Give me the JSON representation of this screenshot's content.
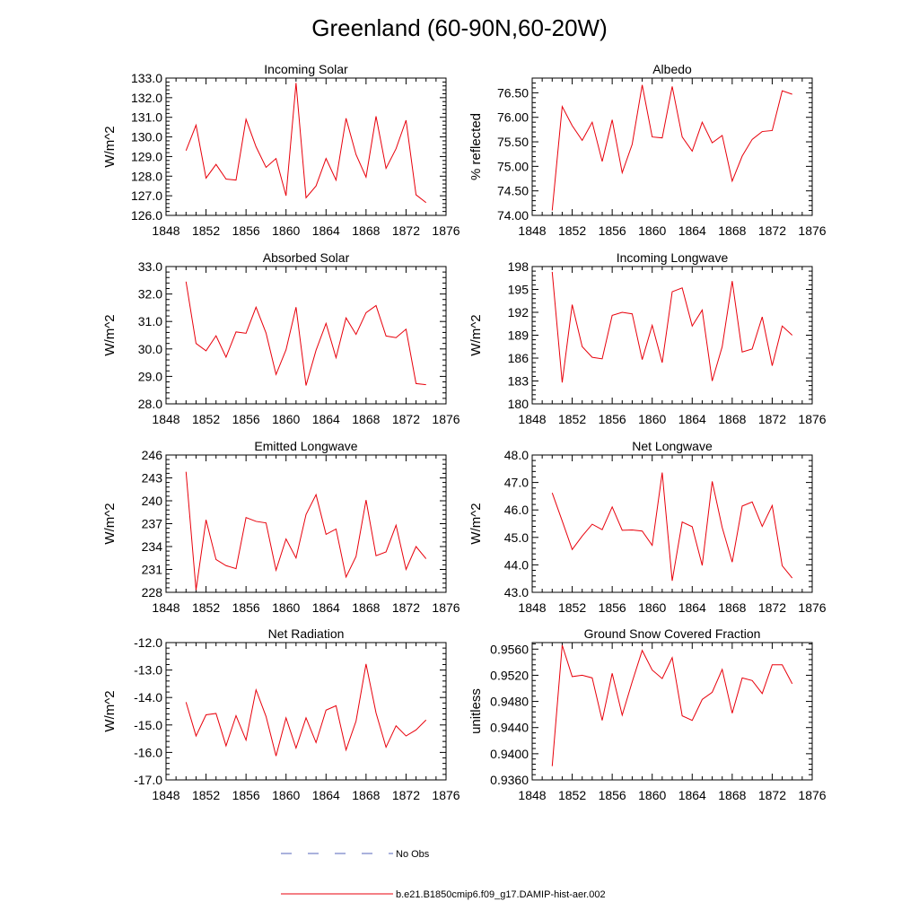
{
  "figure": {
    "title": "Greenland (60-90N,60-20W)"
  },
  "legend": {
    "entries": [
      {
        "label": "No Obs",
        "color": "#5566bb",
        "dash": "dashed"
      },
      {
        "label": "b.e21.B1850cmip6.f09_g17.DAMIP-hist-aer.002",
        "color": "#e8000b",
        "dash": "solid"
      }
    ]
  },
  "colors": {
    "series": "#e8000b",
    "no_obs": "#5566bb"
  },
  "chart_data": [
    {
      "type": "line",
      "title": "Incoming Solar",
      "ylabel": "W/m^2",
      "xlim": [
        1848,
        1876
      ],
      "xticks": [
        "1848",
        "1852",
        "1856",
        "1860",
        "1864",
        "1868",
        "1872",
        "1876"
      ],
      "ylim": [
        126.0,
        133.0
      ],
      "yticks": [
        "126.0",
        "127.0",
        "128.0",
        "129.0",
        "130.0",
        "131.0",
        "132.0",
        "133.0"
      ],
      "x": [
        1850,
        1851,
        1852,
        1853,
        1854,
        1855,
        1856,
        1857,
        1858,
        1859,
        1860,
        1861,
        1862,
        1863,
        1864,
        1865,
        1866,
        1867,
        1868,
        1869,
        1870,
        1871,
        1872,
        1873,
        1874
      ],
      "series": [
        {
          "values": [
            129.3,
            130.6,
            127.9,
            128.6,
            127.85,
            127.8,
            130.9,
            129.5,
            128.45,
            128.9,
            127.0,
            132.75,
            126.9,
            127.5,
            128.9,
            127.8,
            130.95,
            129.1,
            127.95,
            131.05,
            128.4,
            129.4,
            130.85,
            127.05,
            126.65
          ]
        }
      ]
    },
    {
      "type": "line",
      "title": "Albedo",
      "ylabel": "% reflected",
      "xlim": [
        1848,
        1876
      ],
      "xticks": [
        "1848",
        "1852",
        "1856",
        "1860",
        "1864",
        "1868",
        "1872",
        "1876"
      ],
      "ylim": [
        74.0,
        76.8
      ],
      "yticks": [
        "74.00",
        "74.50",
        "75.00",
        "75.50",
        "76.00",
        "76.50"
      ],
      "x": [
        1850,
        1851,
        1852,
        1853,
        1854,
        1855,
        1856,
        1857,
        1858,
        1859,
        1860,
        1861,
        1862,
        1863,
        1864,
        1865,
        1866,
        1867,
        1868,
        1869,
        1870,
        1871,
        1872,
        1873,
        1874
      ],
      "series": [
        {
          "values": [
            74.1,
            76.22,
            75.83,
            75.53,
            75.9,
            75.1,
            75.95,
            74.87,
            75.45,
            76.66,
            75.6,
            75.58,
            76.63,
            75.6,
            75.31,
            75.9,
            75.48,
            75.63,
            74.7,
            75.21,
            75.55,
            75.71,
            75.73,
            76.54,
            76.47
          ]
        }
      ]
    },
    {
      "type": "line",
      "title": "Absorbed Solar",
      "ylabel": "W/m^2",
      "xlim": [
        1848,
        1876
      ],
      "xticks": [
        "1848",
        "1852",
        "1856",
        "1860",
        "1864",
        "1868",
        "1872",
        "1876"
      ],
      "ylim": [
        28.0,
        33.0
      ],
      "yticks": [
        "28.0",
        "29.0",
        "30.0",
        "31.0",
        "32.0",
        "33.0"
      ],
      "x": [
        1850,
        1851,
        1852,
        1853,
        1854,
        1855,
        1856,
        1857,
        1858,
        1859,
        1860,
        1861,
        1862,
        1863,
        1864,
        1865,
        1866,
        1867,
        1868,
        1869,
        1870,
        1871,
        1872,
        1873,
        1874
      ],
      "series": [
        {
          "values": [
            32.45,
            30.2,
            29.93,
            30.48,
            29.7,
            30.62,
            30.57,
            31.52,
            30.58,
            29.07,
            29.97,
            31.52,
            28.67,
            29.95,
            30.93,
            29.68,
            31.13,
            30.53,
            31.32,
            31.58,
            30.47,
            30.41,
            30.72,
            28.74,
            28.7
          ]
        }
      ]
    },
    {
      "type": "line",
      "title": "Incoming Longwave",
      "ylabel": "W/m^2",
      "xlim": [
        1848,
        1876
      ],
      "xticks": [
        "1848",
        "1852",
        "1856",
        "1860",
        "1864",
        "1868",
        "1872",
        "1876"
      ],
      "ylim": [
        180,
        198
      ],
      "yticks": [
        "180",
        "183",
        "186",
        "189",
        "192",
        "195",
        "198"
      ],
      "x": [
        1850,
        1851,
        1852,
        1853,
        1854,
        1855,
        1856,
        1857,
        1858,
        1859,
        1860,
        1861,
        1862,
        1863,
        1864,
        1865,
        1866,
        1867,
        1868,
        1869,
        1870,
        1871,
        1872,
        1873,
        1874
      ],
      "series": [
        {
          "values": [
            197.3,
            182.8,
            193.0,
            187.5,
            186.1,
            185.9,
            191.6,
            192.0,
            191.8,
            185.8,
            190.3,
            185.4,
            194.7,
            195.2,
            190.2,
            192.3,
            183.0,
            187.5,
            196.1,
            186.8,
            187.2,
            191.4,
            185.0,
            190.2,
            189.0
          ]
        }
      ]
    },
    {
      "type": "line",
      "title": "Emitted Longwave",
      "ylabel": "W/m^2",
      "xlim": [
        1848,
        1876
      ],
      "xticks": [
        "1848",
        "1852",
        "1856",
        "1860",
        "1864",
        "1868",
        "1872",
        "1876"
      ],
      "ylim": [
        228,
        246
      ],
      "yticks": [
        "228",
        "231",
        "234",
        "237",
        "240",
        "243",
        "246"
      ],
      "x": [
        1850,
        1851,
        1852,
        1853,
        1854,
        1855,
        1856,
        1857,
        1858,
        1859,
        1860,
        1861,
        1862,
        1863,
        1864,
        1865,
        1866,
        1867,
        1868,
        1869,
        1870,
        1871,
        1872,
        1873,
        1874
      ],
      "series": [
        {
          "values": [
            243.8,
            228.3,
            237.5,
            232.3,
            231.5,
            231.1,
            237.8,
            237.3,
            237.1,
            230.9,
            235.0,
            232.5,
            238.2,
            240.8,
            235.6,
            236.3,
            230.0,
            232.7,
            240.1,
            232.8,
            233.3,
            236.8,
            231.0,
            234.0,
            232.4
          ]
        }
      ]
    },
    {
      "type": "line",
      "title": "Net Longwave",
      "ylabel": "W/m^2",
      "xlim": [
        1848,
        1876
      ],
      "xticks": [
        "1848",
        "1852",
        "1856",
        "1860",
        "1864",
        "1868",
        "1872",
        "1876"
      ],
      "ylim": [
        43.0,
        48.0
      ],
      "yticks": [
        "43.0",
        "44.0",
        "45.0",
        "46.0",
        "47.0",
        "48.0"
      ],
      "x": [
        1850,
        1851,
        1852,
        1853,
        1854,
        1855,
        1856,
        1857,
        1858,
        1859,
        1860,
        1861,
        1862,
        1863,
        1864,
        1865,
        1866,
        1867,
        1868,
        1869,
        1870,
        1871,
        1872,
        1873,
        1874
      ],
      "series": [
        {
          "values": [
            46.62,
            45.6,
            44.56,
            45.05,
            45.48,
            45.28,
            46.11,
            45.26,
            45.27,
            45.23,
            44.71,
            47.36,
            43.42,
            45.56,
            45.39,
            43.98,
            47.04,
            45.36,
            44.1,
            46.14,
            46.29,
            45.4,
            46.16,
            43.97,
            43.52
          ]
        }
      ]
    },
    {
      "type": "line",
      "title": "Net Radiation",
      "ylabel": "W/m^2",
      "xlim": [
        1848,
        1876
      ],
      "xticks": [
        "1848",
        "1852",
        "1856",
        "1860",
        "1864",
        "1868",
        "1872",
        "1876"
      ],
      "ylim": [
        -17.0,
        -12.0
      ],
      "yticks": [
        "-17.0",
        "-16.0",
        "-15.0",
        "-14.0",
        "-13.0",
        "-12.0"
      ],
      "x": [
        1850,
        1851,
        1852,
        1853,
        1854,
        1855,
        1856,
        1857,
        1858,
        1859,
        1860,
        1861,
        1862,
        1863,
        1864,
        1865,
        1866,
        1867,
        1868,
        1869,
        1870,
        1871,
        1872,
        1873,
        1874
      ],
      "series": [
        {
          "values": [
            -14.17,
            -15.4,
            -14.63,
            -14.58,
            -15.76,
            -14.66,
            -15.55,
            -13.72,
            -14.69,
            -16.13,
            -14.74,
            -15.84,
            -14.74,
            -15.64,
            -14.46,
            -14.3,
            -15.91,
            -14.86,
            -12.78,
            -14.56,
            -15.81,
            -15.03,
            -15.4,
            -15.18,
            -14.82
          ]
        }
      ]
    },
    {
      "type": "line",
      "title": "Ground Snow Covered Fraction",
      "ylabel": "unitless",
      "xlim": [
        1848,
        1876
      ],
      "xticks": [
        "1848",
        "1852",
        "1856",
        "1860",
        "1864",
        "1868",
        "1872",
        "1876"
      ],
      "ylim": [
        0.936,
        0.957
      ],
      "yticks": [
        "0.9360",
        "0.9400",
        "0.9440",
        "0.9480",
        "0.9520",
        "0.9560"
      ],
      "x": [
        1850,
        1851,
        1852,
        1853,
        1854,
        1855,
        1856,
        1857,
        1858,
        1859,
        1860,
        1861,
        1862,
        1863,
        1864,
        1865,
        1866,
        1867,
        1868,
        1869,
        1870,
        1871,
        1872,
        1873,
        1874
      ],
      "series": [
        {
          "values": [
            0.9381,
            0.9566,
            0.9518,
            0.952,
            0.9516,
            0.9451,
            0.9523,
            0.9459,
            0.951,
            0.9558,
            0.9528,
            0.9515,
            0.9547,
            0.9458,
            0.9451,
            0.9483,
            0.9494,
            0.9529,
            0.9462,
            0.9516,
            0.9512,
            0.9492,
            0.9536,
            0.9536,
            0.9507
          ]
        }
      ]
    }
  ]
}
